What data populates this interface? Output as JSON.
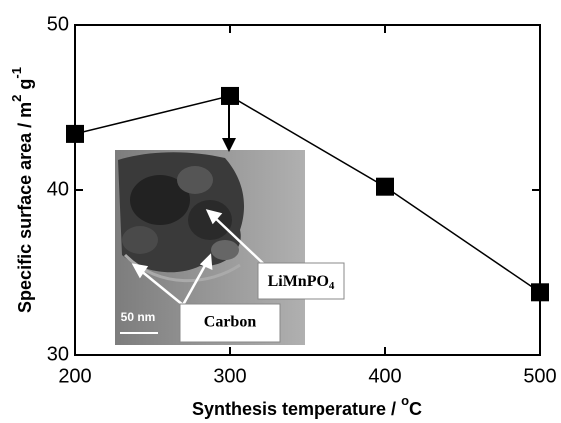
{
  "chart_data": {
    "type": "line",
    "x": [
      200,
      300,
      400,
      500
    ],
    "series": [
      {
        "color": "#000000",
        "values": [
          43.4,
          45.7,
          40.2,
          33.8
        ]
      }
    ],
    "xlim": [
      200,
      500
    ],
    "xticks": [
      200,
      300,
      400,
      500
    ],
    "ylim": [
      30,
      50
    ],
    "yticks": [
      30,
      40,
      50
    ],
    "xlabel": [
      "Synthesis temperature / ",
      "o",
      "C"
    ],
    "ylabel": [
      "Specific surface area / m",
      "2",
      " g",
      "-1"
    ],
    "annotations": {
      "phase": [
        "LiMnPO",
        "4"
      ],
      "carbon": "Carbon",
      "scale": "50 nm"
    }
  }
}
